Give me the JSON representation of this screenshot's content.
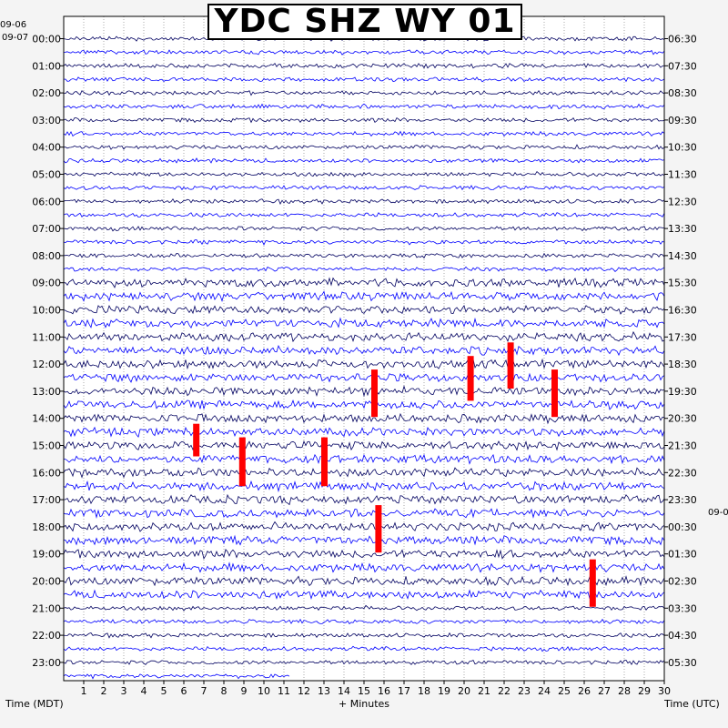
{
  "title": "YDC SHZ WY 01",
  "corner_labels": {
    "top_left_date": "09-06",
    "left_date": "09-07",
    "right_date": "09-0"
  },
  "colors": {
    "trace_palette": [
      "#000060",
      "#0000ff",
      "#1a1aa8",
      "#0010d0"
    ],
    "clip_color": "#ff0000",
    "grid_color": "#000000",
    "plot_background": "#ffffff"
  },
  "chart_data": {
    "type": "helicorder",
    "title": "YDC SHZ WY 01",
    "xlabel": "+ Minutes",
    "x_ticks": [
      "1",
      "2",
      "3",
      "4",
      "5",
      "6",
      "7",
      "8",
      "9",
      "10",
      "11",
      "12",
      "13",
      "14",
      "15",
      "16",
      "17",
      "18",
      "19",
      "20",
      "21",
      "22",
      "23",
      "24",
      "25",
      "26",
      "27",
      "28",
      "29",
      "30"
    ],
    "xlim": [
      0,
      30
    ],
    "left_axis_title": "Time (MDT)",
    "right_axis_title": "Time (UTC)",
    "left_hour_labels": [
      "00:00",
      "01:00",
      "02:00",
      "03:00",
      "04:00",
      "05:00",
      "06:00",
      "07:00",
      "08:00",
      "09:00",
      "10:00",
      "11:00",
      "12:00",
      "13:00",
      "14:00",
      "15:00",
      "16:00",
      "17:00",
      "18:00",
      "19:00",
      "20:00",
      "21:00",
      "22:00",
      "23:00"
    ],
    "right_hour_labels": [
      "06:30",
      "07:30",
      "08:30",
      "09:30",
      "10:30",
      "11:30",
      "12:30",
      "13:30",
      "14:30",
      "15:30",
      "16:30",
      "17:30",
      "18:30",
      "19:30",
      "20:30",
      "21:30",
      "22:30",
      "23:30",
      "00:30",
      "01:30",
      "02:30",
      "03:30",
      "04:30",
      "05:30"
    ],
    "traces_per_hour": 2,
    "minutes_per_trace": 30,
    "grid": true,
    "clipped_events": [
      {
        "hour": "11:00",
        "trace": 1,
        "minute": 22.3,
        "length_traces": 3.4
      },
      {
        "hour": "12:00",
        "trace": 0,
        "minute": 20.3,
        "length_traces": 3.3
      },
      {
        "hour": "12:00",
        "trace": 1,
        "minute": 15.5,
        "length_traces": 3.5
      },
      {
        "hour": "12:00",
        "trace": 1,
        "minute": 24.5,
        "length_traces": 3.5
      },
      {
        "hour": "14:00",
        "trace": 1,
        "minute": 6.6,
        "length_traces": 2.4
      },
      {
        "hour": "15:00",
        "trace": 0,
        "minute": 8.9,
        "length_traces": 3.6
      },
      {
        "hour": "15:00",
        "trace": 0,
        "minute": 13.0,
        "length_traces": 3.6
      },
      {
        "hour": "17:00",
        "trace": 1,
        "minute": 15.7,
        "length_traces": 3.5
      },
      {
        "hour": "19:00",
        "trace": 1,
        "minute": 26.4,
        "length_traces": 3.5
      }
    ],
    "last_trace_end_minute": 11.3
  }
}
